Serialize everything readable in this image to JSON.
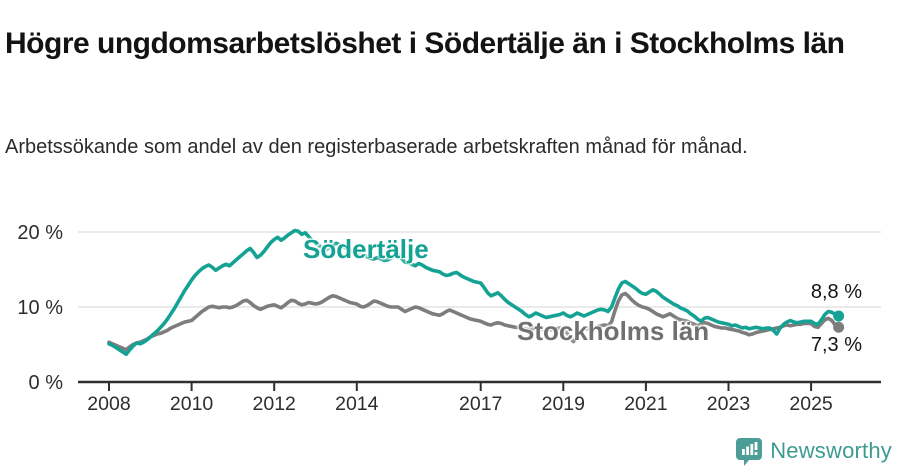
{
  "title": "Högre ungdomsarbetslöshet i Södertälje än i Stockholms län",
  "subtitle": "Arbetssökande som andel av den registerbaserade arbetskraften månad för månad.",
  "footer": {
    "brand": "Newsworthy"
  },
  "colors": {
    "sodertalje": "#14a294",
    "stockholm": "#7d7d7d",
    "grid": "#dedede",
    "axis": "#2f2f2f",
    "tick_text": "#2e2e2e",
    "brand_icon": "#4b9d95",
    "brand_text": "#3e9b92"
  },
  "chart_data": {
    "type": "line",
    "x_unit": "month",
    "x_start": "2008-01",
    "x_end": "2025-09",
    "xticks": [
      2008,
      2010,
      2012,
      2014,
      2017,
      2019,
      2021,
      2023,
      2025
    ],
    "yticks": [
      0,
      10,
      20
    ],
    "ytick_labels": [
      "0 %",
      "10 %",
      "20 %"
    ],
    "ylim": [
      0,
      22
    ],
    "grid": "horizontal-only",
    "legend_position": "inline-labels",
    "series": [
      {
        "name": "Södertälje",
        "color": "#14a294",
        "end_label": "8,8 %",
        "end_value": 8.8,
        "values": [
          5.1,
          4.9,
          4.6,
          4.3,
          4.0,
          3.7,
          4.3,
          4.8,
          5.2,
          5.1,
          5.3,
          5.6,
          6.0,
          6.4,
          6.8,
          7.3,
          7.8,
          8.4,
          9.1,
          9.8,
          10.6,
          11.4,
          12.2,
          12.9,
          13.6,
          14.2,
          14.7,
          15.1,
          15.4,
          15.6,
          15.3,
          14.9,
          15.2,
          15.5,
          15.7,
          15.5,
          15.9,
          16.3,
          16.7,
          17.1,
          17.5,
          17.8,
          17.3,
          16.6,
          16.9,
          17.4,
          18.0,
          18.6,
          19.0,
          19.3,
          18.9,
          19.2,
          19.6,
          19.9,
          20.2,
          20.1,
          19.7,
          19.9,
          19.4,
          18.9,
          18.5,
          18.2,
          17.9,
          17.6,
          17.9,
          18.2,
          18.5,
          18.3,
          18.0,
          17.8,
          17.6,
          17.4,
          17.2,
          17.1,
          16.9,
          16.7,
          16.5,
          16.4,
          16.6,
          16.4,
          16.2,
          16.3,
          16.5,
          16.8,
          17.0,
          16.5,
          16.0,
          15.9,
          15.7,
          15.5,
          15.8,
          15.6,
          15.3,
          15.1,
          14.9,
          14.8,
          14.7,
          14.4,
          14.2,
          14.3,
          14.5,
          14.6,
          14.3,
          14.0,
          13.8,
          13.6,
          13.4,
          13.3,
          13.2,
          12.6,
          11.9,
          11.5,
          11.7,
          11.9,
          11.5,
          11.0,
          10.6,
          10.3,
          10.0,
          9.7,
          9.4,
          9.0,
          8.7,
          8.9,
          9.2,
          9.0,
          8.8,
          8.6,
          8.7,
          8.8,
          8.9,
          9.0,
          9.2,
          8.9,
          8.7,
          8.9,
          9.2,
          9.0,
          8.8,
          9.0,
          9.2,
          9.4,
          9.6,
          9.7,
          9.6,
          9.4,
          10.0,
          11.2,
          12.4,
          13.2,
          13.4,
          13.1,
          12.8,
          12.5,
          12.1,
          11.8,
          11.7,
          12.0,
          12.3,
          12.1,
          11.7,
          11.3,
          11.0,
          10.7,
          10.4,
          10.2,
          9.9,
          9.7,
          9.5,
          9.1,
          8.8,
          8.4,
          8.1,
          8.5,
          8.6,
          8.4,
          8.2,
          8.0,
          7.9,
          7.8,
          7.7,
          7.5,
          7.6,
          7.4,
          7.2,
          7.3,
          7.1,
          7.2,
          7.3,
          7.2,
          7.1,
          7.2,
          7.2,
          6.9,
          6.4,
          7.2,
          7.7,
          8.0,
          8.2,
          8.0,
          7.9,
          8.0,
          8.1,
          8.1,
          8.1,
          7.8,
          7.7,
          8.3,
          9.0,
          9.4,
          9.3,
          9.0,
          8.8
        ]
      },
      {
        "name": "Stockholms län",
        "color": "#7d7d7d",
        "end_label": "7,3 %",
        "end_value": 7.3,
        "values": [
          5.3,
          5.1,
          4.9,
          4.7,
          4.5,
          4.3,
          4.7,
          5.0,
          5.2,
          5.3,
          5.5,
          5.7,
          6.0,
          6.2,
          6.4,
          6.5,
          6.7,
          6.9,
          7.2,
          7.4,
          7.6,
          7.8,
          8.0,
          8.1,
          8.2,
          8.6,
          9.0,
          9.4,
          9.7,
          10.0,
          10.1,
          10.0,
          9.9,
          10.0,
          10.0,
          9.9,
          10.0,
          10.2,
          10.5,
          10.8,
          10.9,
          10.6,
          10.2,
          9.9,
          9.7,
          9.9,
          10.1,
          10.2,
          10.3,
          10.1,
          9.9,
          10.2,
          10.6,
          10.9,
          10.8,
          10.5,
          10.3,
          10.4,
          10.6,
          10.5,
          10.4,
          10.5,
          10.7,
          11.0,
          11.3,
          11.5,
          11.4,
          11.2,
          11.0,
          10.8,
          10.6,
          10.5,
          10.4,
          10.1,
          10.0,
          10.2,
          10.5,
          10.8,
          10.7,
          10.5,
          10.3,
          10.1,
          10.0,
          10.0,
          10.0,
          9.7,
          9.4,
          9.6,
          9.8,
          10.0,
          9.9,
          9.7,
          9.5,
          9.3,
          9.1,
          9.0,
          8.9,
          9.1,
          9.4,
          9.6,
          9.4,
          9.2,
          9.0,
          8.8,
          8.6,
          8.4,
          8.3,
          8.2,
          8.1,
          7.9,
          7.7,
          7.6,
          7.8,
          7.9,
          7.8,
          7.6,
          7.5,
          7.4,
          7.3,
          7.3,
          7.2,
          7.1,
          7.0,
          7.1,
          7.2,
          7.1,
          7.0,
          6.9,
          6.9,
          7.0,
          7.1,
          7.2,
          7.0,
          6.6,
          5.8,
          5.4,
          6.2,
          6.8,
          7.0,
          7.1,
          7.2,
          7.3,
          7.4,
          7.5,
          7.6,
          7.5,
          8.0,
          9.5,
          10.8,
          11.6,
          11.8,
          11.4,
          10.9,
          10.5,
          10.2,
          10.0,
          9.9,
          9.7,
          9.4,
          9.1,
          8.9,
          8.7,
          8.9,
          9.1,
          8.8,
          8.5,
          8.3,
          8.2,
          8.1,
          7.9,
          7.7,
          7.5,
          7.7,
          7.9,
          7.8,
          7.6,
          7.4,
          7.3,
          7.2,
          7.2,
          7.1,
          7.0,
          6.9,
          6.8,
          6.6,
          6.5,
          6.3,
          6.4,
          6.6,
          6.7,
          6.8,
          6.9,
          7.0,
          7.1,
          7.2,
          7.3,
          7.5,
          7.6,
          7.5,
          7.6,
          7.7,
          7.7,
          7.8,
          7.8,
          7.8,
          7.4,
          7.3,
          7.8,
          8.3,
          8.5,
          8.2,
          7.6,
          7.3
        ]
      }
    ]
  }
}
